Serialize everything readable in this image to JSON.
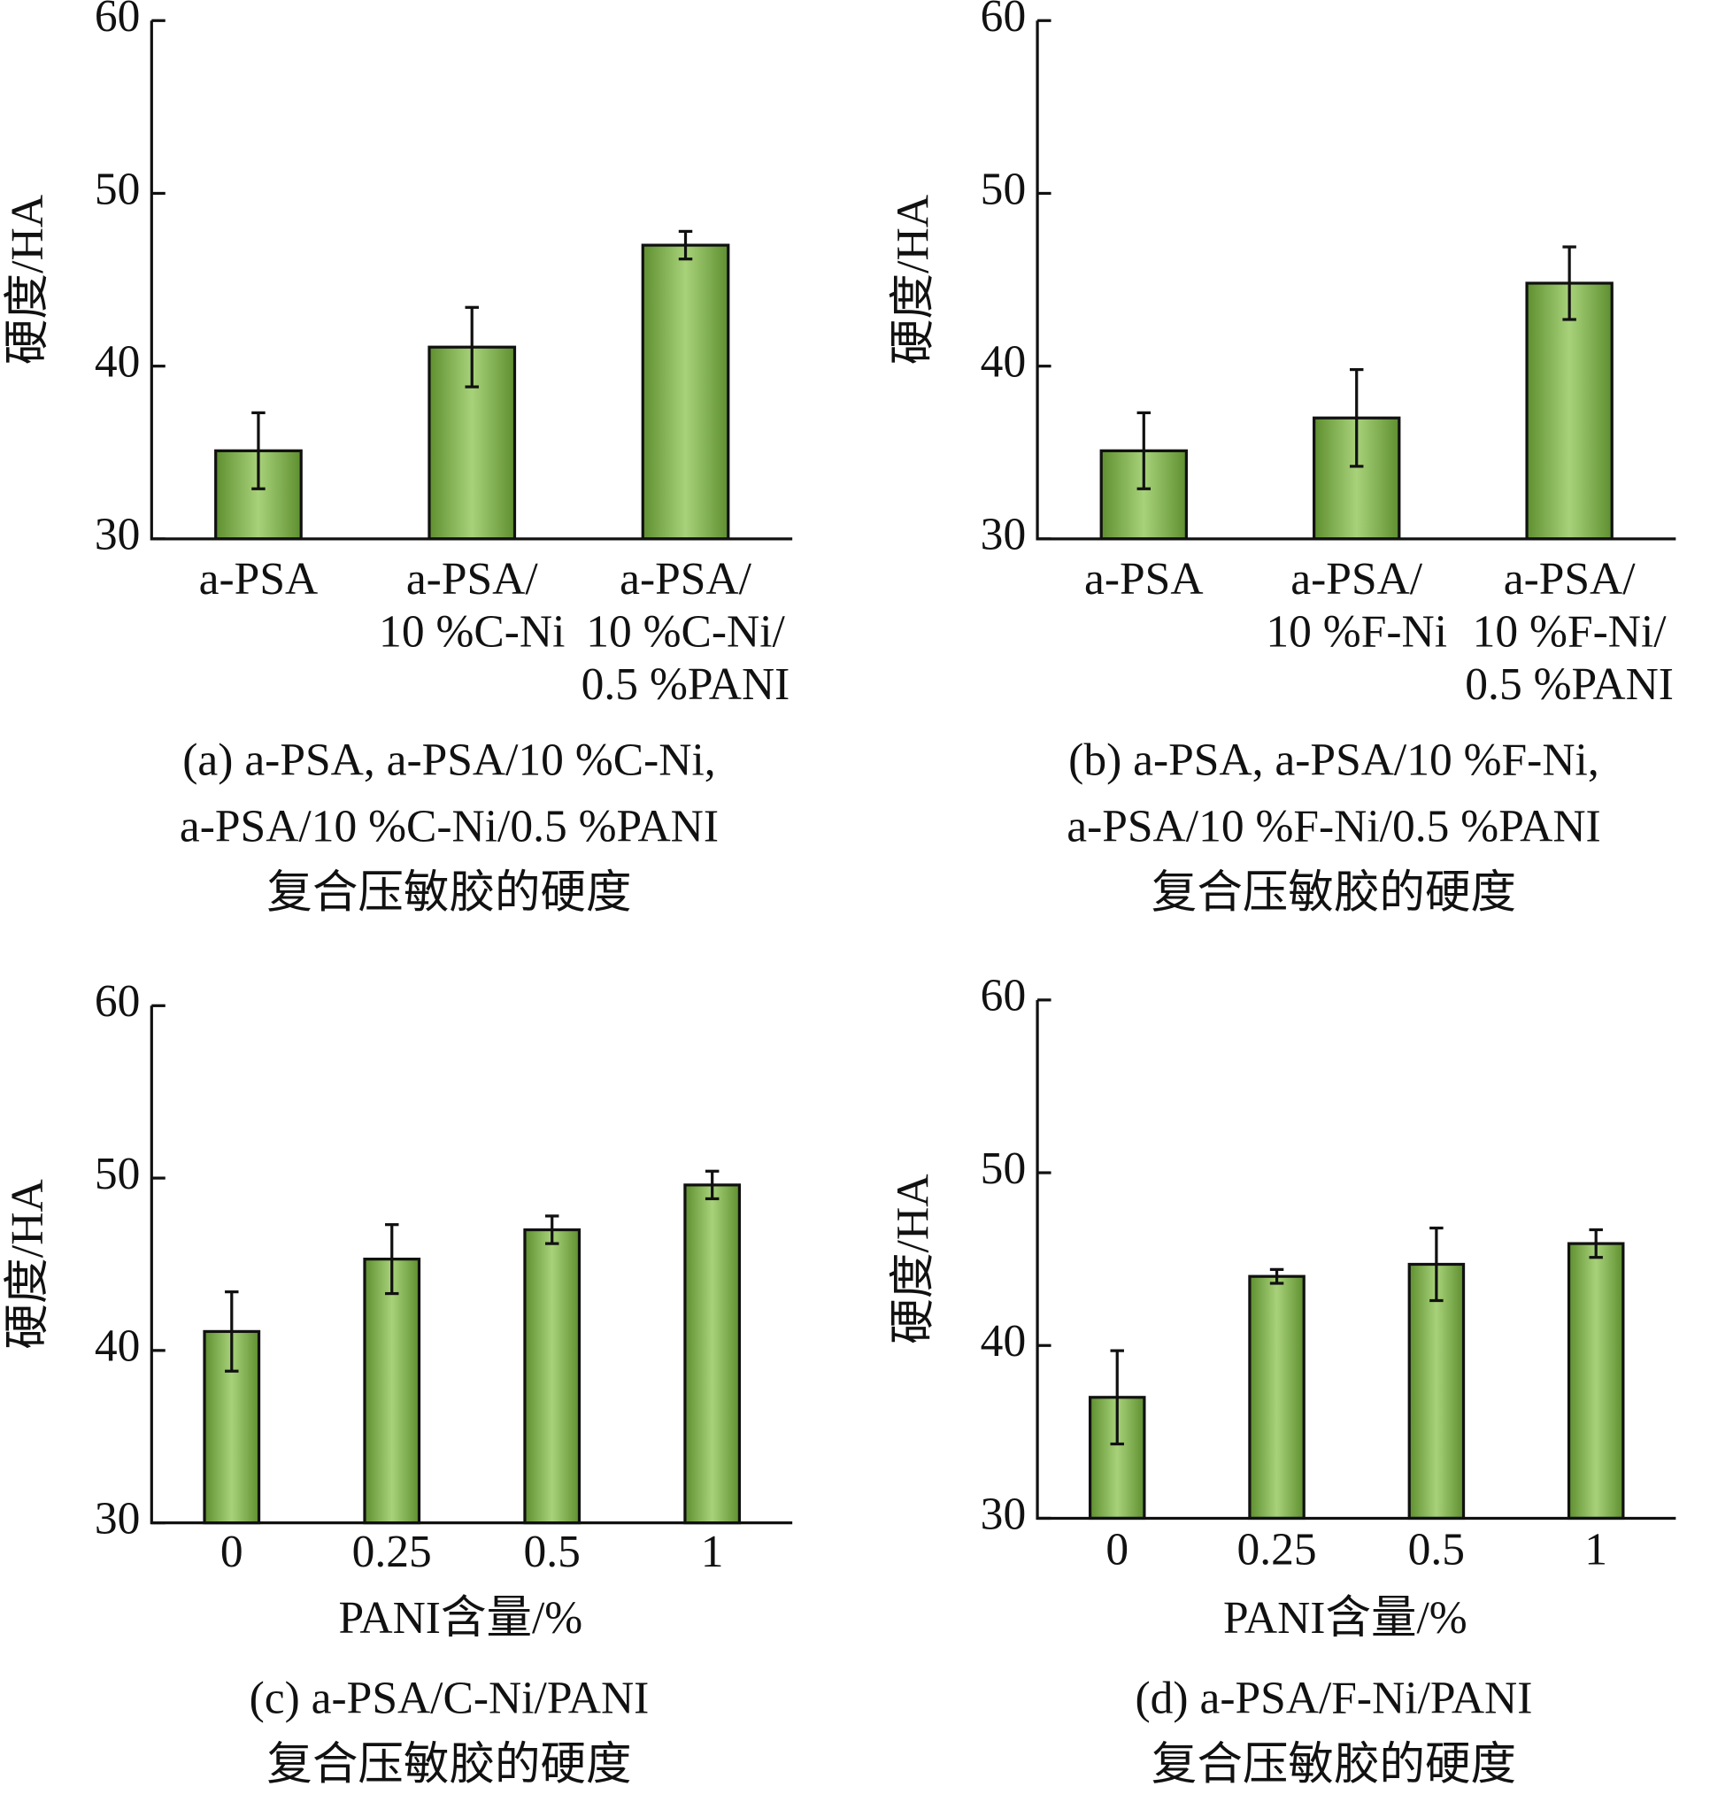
{
  "chart_data": [
    {
      "type": "bar",
      "ylabel": "硬度/HA",
      "categories": [
        [
          "a-PSA"
        ],
        [
          "a-PSA/",
          "10 %C-Ni"
        ],
        [
          "a-PSA/",
          "10 %C-Ni/",
          "0.5 %PANI"
        ]
      ],
      "values": [
        35.1,
        41.1,
        47.0
      ],
      "errors": [
        2.2,
        2.3,
        0.8
      ],
      "color": "#a8d27a",
      "ylim": [
        30,
        60
      ],
      "yticks": [
        30,
        40,
        50,
        60
      ],
      "caption": [
        "(a) a-PSA, a-PSA/10 %C-Ni,",
        "a-PSA/10 %C-Ni/0.5 %PANI",
        "复合压敏胶的硬度"
      ]
    },
    {
      "type": "bar",
      "ylabel": "硬度/HA",
      "categories": [
        [
          "a-PSA"
        ],
        [
          "a-PSA/",
          "10 %F-Ni"
        ],
        [
          "a-PSA/",
          "10 %F-Ni/",
          "0.5 %PANI"
        ]
      ],
      "values": [
        35.1,
        37.0,
        44.8
      ],
      "errors": [
        2.2,
        2.8,
        2.1
      ],
      "color": "#a8d27a",
      "ylim": [
        30,
        60
      ],
      "yticks": [
        30,
        40,
        50,
        60
      ],
      "caption": [
        "(b) a-PSA, a-PSA/10 %F-Ni,",
        "a-PSA/10 %F-Ni/0.5 %PANI",
        "复合压敏胶的硬度"
      ]
    },
    {
      "type": "bar",
      "ylabel": "硬度/HA",
      "xlabel": "PANI含量/%",
      "categories": [
        [
          "0"
        ],
        [
          "0.25"
        ],
        [
          "0.5"
        ],
        [
          "1"
        ]
      ],
      "values": [
        41.1,
        45.3,
        47.0,
        49.6
      ],
      "errors": [
        2.3,
        2.0,
        0.8,
        0.8
      ],
      "color": "#a8d27a",
      "ylim": [
        30,
        60
      ],
      "yticks": [
        30,
        40,
        50,
        60
      ],
      "caption": [
        "(c) a-PSA/C-Ni/PANI",
        "复合压敏胶的硬度"
      ]
    },
    {
      "type": "bar",
      "ylabel": "硬度/HA",
      "xlabel": "PANI含量/%",
      "categories": [
        [
          "0"
        ],
        [
          "0.25"
        ],
        [
          "0.5"
        ],
        [
          "1"
        ]
      ],
      "values": [
        37.0,
        44.0,
        44.7,
        45.9
      ],
      "errors": [
        2.7,
        0.4,
        2.1,
        0.8
      ],
      "color": "#a8d27a",
      "ylim": [
        30,
        60
      ],
      "yticks": [
        30,
        40,
        50,
        60
      ],
      "caption": [
        "(d) a-PSA/F-Ni/PANI",
        "复合压敏胶的硬度"
      ]
    }
  ]
}
